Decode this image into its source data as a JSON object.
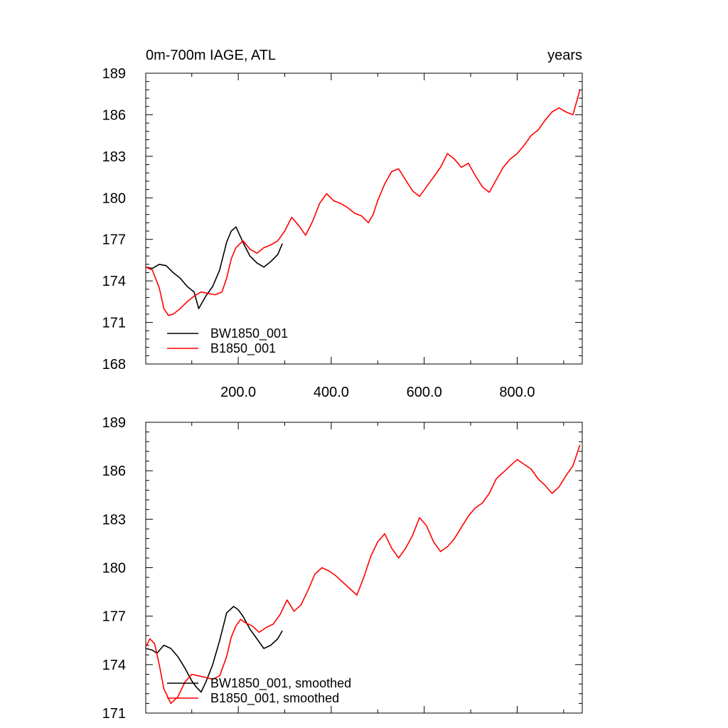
{
  "chart_data": [
    {
      "type": "line",
      "title_left": "0m-700m IAGE, ATL",
      "title_right": "years",
      "xlim": [
        1,
        940
      ],
      "ylim": [
        168,
        189
      ],
      "yticks": [
        168,
        171,
        174,
        177,
        180,
        183,
        186,
        189
      ],
      "ytick_labels": [
        "168",
        "171",
        "174",
        "177",
        "180",
        "183",
        "186",
        "189"
      ],
      "xticks": [
        200,
        400,
        600,
        800
      ],
      "xtick_labels": [
        "200.0",
        "400.0",
        "600.0",
        "800.0"
      ],
      "legend": "bottom-left",
      "grid": false,
      "series": [
        {
          "name": "BW1850_001",
          "color": "#000000",
          "x": [
            1,
            15,
            30,
            45,
            60,
            75,
            90,
            105,
            115,
            130,
            145,
            160,
            175,
            185,
            195,
            210,
            225,
            240,
            255,
            270,
            285,
            295
          ],
          "values": [
            175.0,
            174.9,
            175.2,
            175.1,
            174.6,
            174.2,
            173.6,
            173.2,
            172.0,
            172.9,
            173.6,
            174.8,
            176.8,
            177.6,
            177.9,
            176.8,
            175.8,
            175.3,
            175.0,
            175.4,
            175.9,
            176.7
          ]
        },
        {
          "name": "B1850_001",
          "color": "#ff0000",
          "x": [
            1,
            15,
            30,
            40,
            50,
            60,
            75,
            90,
            105,
            120,
            135,
            150,
            165,
            175,
            185,
            195,
            210,
            225,
            240,
            255,
            270,
            285,
            300,
            315,
            330,
            345,
            360,
            375,
            390,
            405,
            420,
            435,
            450,
            465,
            480,
            490,
            500,
            515,
            530,
            545,
            560,
            575,
            590,
            605,
            620,
            635,
            650,
            665,
            680,
            695,
            710,
            725,
            740,
            755,
            770,
            785,
            800,
            815,
            830,
            845,
            860,
            875,
            890,
            905,
            920,
            935
          ],
          "values": [
            175.0,
            174.8,
            173.5,
            172.0,
            171.5,
            171.6,
            172.0,
            172.5,
            172.9,
            173.2,
            173.1,
            173.0,
            173.2,
            174.2,
            175.6,
            176.4,
            176.9,
            176.3,
            176.0,
            176.4,
            176.6,
            176.9,
            177.6,
            178.6,
            178.0,
            177.3,
            178.3,
            179.6,
            180.3,
            179.8,
            179.6,
            179.3,
            178.9,
            178.7,
            178.2,
            178.8,
            179.8,
            181.0,
            181.9,
            182.1,
            181.3,
            180.5,
            180.1,
            180.8,
            181.5,
            182.2,
            183.2,
            182.8,
            182.2,
            182.5,
            181.6,
            180.8,
            180.4,
            181.3,
            182.2,
            182.8,
            183.2,
            183.8,
            184.5,
            184.9,
            185.6,
            186.2,
            186.5,
            186.2,
            186.0,
            187.8
          ]
        }
      ]
    },
    {
      "type": "line",
      "xlim": [
        1,
        940
      ],
      "ylim": [
        171,
        189
      ],
      "yticks": [
        171,
        174,
        177,
        180,
        183,
        186,
        189
      ],
      "ytick_labels": [
        "171",
        "174",
        "177",
        "180",
        "183",
        "186",
        "189"
      ],
      "legend": "bottom-left",
      "grid": false,
      "series": [
        {
          "name": "BW1850_001, smoothed",
          "color": "#000000",
          "x": [
            1,
            15,
            25,
            40,
            55,
            70,
            85,
            100,
            110,
            120,
            130,
            145,
            160,
            175,
            190,
            200,
            210,
            225,
            240,
            255,
            270,
            285,
            295
          ],
          "values": [
            175.0,
            174.9,
            174.7,
            175.2,
            175.0,
            174.5,
            173.8,
            173.0,
            172.6,
            172.3,
            172.9,
            174.0,
            175.5,
            177.2,
            177.6,
            177.4,
            177.0,
            176.2,
            175.6,
            175.0,
            175.2,
            175.6,
            176.1
          ]
        },
        {
          "name": "B1850_001, smoothed",
          "color": "#ff0000",
          "x": [
            1,
            10,
            20,
            30,
            40,
            55,
            70,
            85,
            100,
            115,
            130,
            145,
            160,
            175,
            185,
            195,
            205,
            215,
            230,
            245,
            260,
            275,
            290,
            305,
            320,
            335,
            350,
            365,
            380,
            395,
            410,
            425,
            440,
            455,
            470,
            485,
            500,
            515,
            530,
            545,
            560,
            575,
            590,
            605,
            620,
            635,
            650,
            665,
            680,
            695,
            710,
            725,
            740,
            755,
            770,
            785,
            800,
            815,
            830,
            845,
            860,
            875,
            890,
            905,
            920,
            935
          ],
          "values": [
            175.1,
            175.6,
            175.3,
            174.0,
            172.5,
            171.6,
            172.0,
            172.9,
            173.4,
            173.3,
            173.2,
            173.1,
            173.3,
            174.5,
            175.7,
            176.4,
            176.8,
            176.6,
            176.4,
            176.0,
            176.3,
            176.5,
            177.1,
            178.0,
            177.3,
            177.7,
            178.6,
            179.6,
            180.0,
            179.8,
            179.5,
            179.1,
            178.7,
            178.3,
            179.4,
            180.7,
            181.6,
            182.1,
            181.2,
            180.6,
            181.2,
            182.0,
            183.1,
            182.6,
            181.6,
            181.0,
            181.3,
            181.8,
            182.5,
            183.2,
            183.7,
            184.0,
            184.6,
            185.5,
            185.9,
            186.3,
            186.7,
            186.4,
            186.1,
            185.5,
            185.1,
            184.6,
            185.0,
            185.7,
            186.3,
            187.6
          ]
        }
      ]
    }
  ]
}
